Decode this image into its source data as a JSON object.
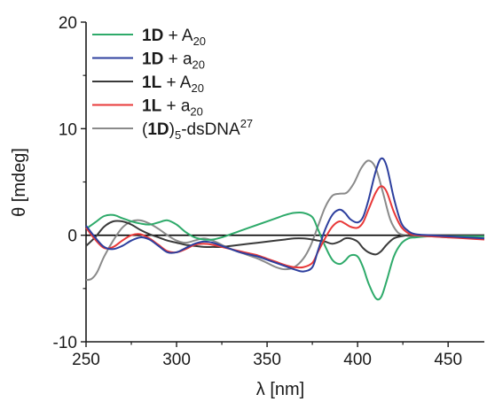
{
  "chart_data": {
    "type": "line",
    "xlabel": "λ [nm]",
    "ylabel": "θ [mdeg]",
    "xlim": [
      250,
      470
    ],
    "ylim": [
      -10,
      20
    ],
    "xticks": [
      250,
      300,
      350,
      400,
      450
    ],
    "yticks": [
      -10,
      0,
      10,
      20
    ],
    "zero_line": true,
    "grid": false,
    "legend": {
      "placement": "top-left",
      "entries": [
        {
          "bold": "1D",
          "text": " + A",
          "sub": "20",
          "sup": "",
          "after": "",
          "color": "#2eaa6a"
        },
        {
          "bold": "1D",
          "text": " + a",
          "sub": "20",
          "sup": "",
          "after": "",
          "color": "#2d3f9e"
        },
        {
          "bold": "1L",
          "text": " + A",
          "sub": "20",
          "sup": "",
          "after": "",
          "color": "#3a3a3a"
        },
        {
          "bold": "1L",
          "text": " + a",
          "sub": "20",
          "sup": "",
          "after": "",
          "color": "#e83838"
        },
        {
          "bold": "1D",
          "pre": "(",
          "text": ")",
          "sub": "5",
          "after": "-dsDNA",
          "sup": "27",
          "color": "#8a8a8a"
        }
      ]
    },
    "series": [
      {
        "color": "#2eaa6a",
        "x": [
          250,
          255,
          260,
          265,
          270,
          275,
          280,
          285,
          290,
          295,
          300,
          305,
          310,
          315,
          320,
          325,
          330,
          335,
          340,
          345,
          350,
          355,
          360,
          365,
          370,
          375,
          378,
          382,
          386,
          390,
          393,
          396,
          400,
          403,
          406,
          410,
          413,
          416,
          420,
          424,
          428,
          432,
          440,
          450,
          460,
          470
        ],
        "y": [
          0.6,
          1.2,
          1.8,
          1.9,
          1.6,
          1.3,
          1.1,
          1.0,
          1.2,
          1.4,
          1.0,
          0.3,
          -0.2,
          -0.4,
          -0.4,
          -0.2,
          0.1,
          0.4,
          0.7,
          1.0,
          1.3,
          1.6,
          1.9,
          2.1,
          2.1,
          1.7,
          0.6,
          -1.0,
          -2.3,
          -2.7,
          -2.4,
          -1.9,
          -2.0,
          -3.0,
          -4.5,
          -5.9,
          -5.8,
          -4.3,
          -2.0,
          -0.8,
          -0.3,
          -0.2,
          -0.1,
          -0.1,
          -0.1,
          -0.1
        ]
      },
      {
        "color": "#2d3f9e",
        "x": [
          250,
          255,
          260,
          265,
          270,
          275,
          280,
          285,
          290,
          295,
          300,
          305,
          310,
          315,
          320,
          325,
          330,
          335,
          340,
          345,
          350,
          355,
          360,
          365,
          370,
          375,
          378,
          382,
          386,
          390,
          393,
          396,
          400,
          403,
          406,
          410,
          413,
          416,
          420,
          424,
          428,
          432,
          440,
          450,
          460,
          470
        ],
        "y": [
          0.9,
          -0.2,
          -1.1,
          -1.3,
          -1.0,
          -0.5,
          -0.2,
          -0.4,
          -1.0,
          -1.6,
          -1.6,
          -1.2,
          -0.8,
          -0.6,
          -0.7,
          -1.0,
          -1.3,
          -1.6,
          -1.8,
          -2.0,
          -2.3,
          -2.6,
          -2.9,
          -3.2,
          -3.4,
          -3.0,
          -1.5,
          0.5,
          1.9,
          2.4,
          2.1,
          1.5,
          1.2,
          1.7,
          3.3,
          6.0,
          7.2,
          6.5,
          3.5,
          1.2,
          0.4,
          0.1,
          0.0,
          -0.1,
          -0.2,
          -0.3
        ]
      },
      {
        "color": "#3a3a3a",
        "x": [
          250,
          255,
          260,
          265,
          270,
          275,
          280,
          285,
          290,
          295,
          300,
          305,
          310,
          315,
          320,
          325,
          330,
          335,
          340,
          345,
          350,
          355,
          360,
          365,
          370,
          375,
          378,
          382,
          386,
          390,
          393,
          396,
          400,
          403,
          406,
          410,
          413,
          416,
          420,
          424,
          428,
          432,
          440,
          450,
          460,
          470
        ],
        "y": [
          -1.0,
          -0.2,
          0.8,
          1.3,
          1.3,
          1.0,
          0.5,
          0.1,
          -0.2,
          -0.5,
          -0.7,
          -0.9,
          -1.0,
          -1.1,
          -1.1,
          -1.1,
          -1.0,
          -0.9,
          -0.8,
          -0.7,
          -0.6,
          -0.5,
          -0.4,
          -0.3,
          -0.3,
          -0.4,
          -0.5,
          -0.6,
          -0.8,
          -0.6,
          -0.3,
          -0.3,
          -0.6,
          -1.2,
          -1.6,
          -1.8,
          -1.5,
          -0.9,
          -0.3,
          -0.1,
          0.0,
          0.0,
          0.0,
          0.0,
          0.0,
          0.0
        ]
      },
      {
        "color": "#e83838",
        "x": [
          250,
          255,
          260,
          265,
          270,
          275,
          280,
          285,
          290,
          295,
          300,
          305,
          310,
          315,
          320,
          325,
          330,
          335,
          340,
          345,
          350,
          355,
          360,
          365,
          370,
          375,
          378,
          382,
          386,
          390,
          393,
          396,
          400,
          403,
          406,
          410,
          413,
          416,
          420,
          424,
          428,
          432,
          440,
          450,
          460,
          470
        ],
        "y": [
          0.7,
          -0.4,
          -1.2,
          -1.1,
          -0.5,
          0.0,
          0.1,
          -0.3,
          -0.9,
          -1.5,
          -1.6,
          -1.3,
          -0.9,
          -0.8,
          -0.9,
          -1.1,
          -1.3,
          -1.5,
          -1.7,
          -1.9,
          -2.2,
          -2.5,
          -2.8,
          -3.0,
          -3.0,
          -2.6,
          -1.6,
          -0.3,
          0.8,
          1.3,
          1.1,
          0.8,
          0.7,
          1.2,
          2.4,
          4.0,
          4.6,
          4.1,
          2.2,
          0.8,
          0.2,
          0.0,
          -0.1,
          -0.2,
          -0.3,
          -0.4
        ]
      },
      {
        "color": "#8a8a8a",
        "x": [
          250,
          253,
          256,
          260,
          265,
          270,
          275,
          280,
          285,
          290,
          295,
          300,
          305,
          310,
          315,
          320,
          325,
          330,
          335,
          340,
          345,
          350,
          355,
          360,
          365,
          370,
          374,
          378,
          382,
          386,
          390,
          394,
          398,
          402,
          406,
          410,
          414,
          418,
          422,
          426,
          430,
          440,
          450,
          460,
          470
        ],
        "y": [
          -4.2,
          -4.1,
          -3.5,
          -2.0,
          -0.5,
          0.7,
          1.3,
          1.4,
          1.1,
          0.6,
          0.0,
          -0.5,
          -0.7,
          -0.5,
          -0.3,
          -0.5,
          -0.9,
          -1.3,
          -1.6,
          -1.9,
          -2.2,
          -2.6,
          -3.0,
          -3.2,
          -3.0,
          -2.2,
          -1.0,
          0.8,
          2.6,
          3.7,
          3.9,
          4.0,
          4.9,
          6.3,
          7.0,
          6.3,
          4.0,
          1.5,
          0.3,
          0.0,
          -0.1,
          -0.1,
          -0.2,
          -0.2,
          -0.3
        ]
      }
    ]
  }
}
